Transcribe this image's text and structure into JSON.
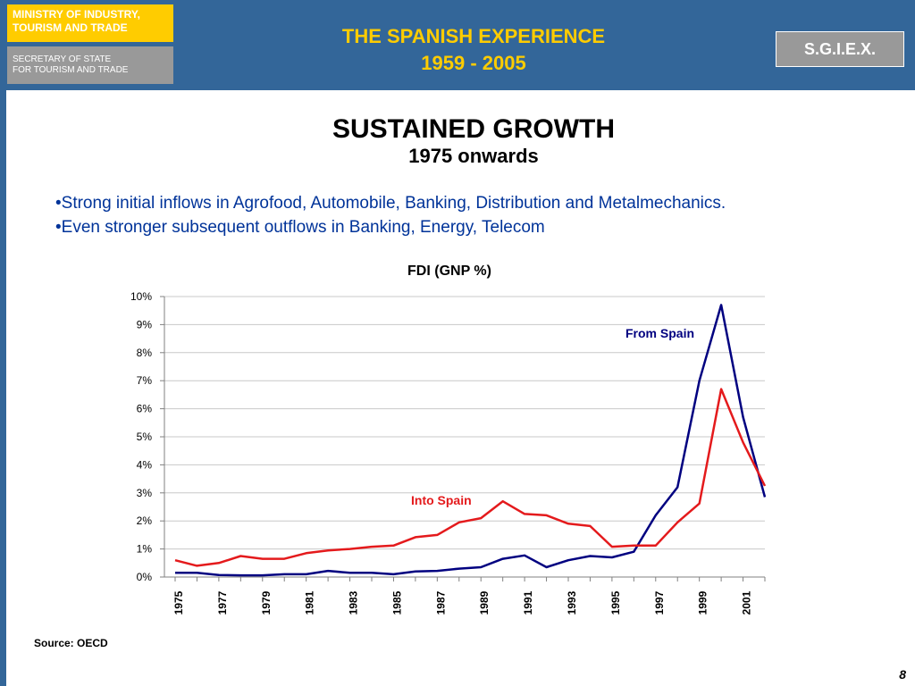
{
  "header": {
    "ministry_line1": "MINISTRY OF INDUSTRY,",
    "ministry_line2": "TOURISM AND TRADE",
    "secretary_line1": "SECRETARY OF STATE",
    "secretary_line2": "FOR TOURISM AND TRADE",
    "title_line1": "THE SPANISH EXPERIENCE",
    "title_line2": "1959 - 2005",
    "badge": "S.G.I.E.X."
  },
  "slide": {
    "title": "SUSTAINED GROWTH",
    "subtitle": "1975 onwards",
    "bullets": [
      "•Strong initial inflows in Agrofood, Automobile, Banking, Distribution and Metalmechanics.",
      "•Even stronger subsequent outflows in Banking, Energy, Telecom"
    ],
    "source": "Source: OECD",
    "page_number": "8"
  },
  "colors": {
    "header_blue": "#336699",
    "ministry_yellow": "#ffcc00",
    "secretary_gray": "#999999",
    "bullet_text": "#003399",
    "series_from_spain": "#000080",
    "series_into_spain": "#e41a1c"
  },
  "chart_data": {
    "type": "line",
    "title": "FDI (GNP %)",
    "x": [
      1975,
      1976,
      1977,
      1978,
      1979,
      1980,
      1981,
      1982,
      1983,
      1984,
      1985,
      1986,
      1987,
      1988,
      1989,
      1990,
      1991,
      1992,
      1993,
      1994,
      1995,
      1996,
      1997,
      1998,
      1999,
      2000,
      2001,
      2002
    ],
    "x_tick_labels": [
      "1975",
      "1977",
      "1979",
      "1981",
      "1983",
      "1985",
      "1987",
      "1989",
      "1991",
      "1993",
      "1995",
      "1997",
      "1999",
      "2001"
    ],
    "y_tick_labels": [
      "0%",
      "1%",
      "2%",
      "3%",
      "4%",
      "5%",
      "6%",
      "7%",
      "8%",
      "9%",
      "10%"
    ],
    "ylim": [
      0,
      10
    ],
    "grid": true,
    "series": [
      {
        "name": "From Spain",
        "color": "#000080",
        "values": [
          0.15,
          0.15,
          0.07,
          0.06,
          0.06,
          0.1,
          0.1,
          0.22,
          0.15,
          0.15,
          0.1,
          0.2,
          0.22,
          0.3,
          0.35,
          0.65,
          0.77,
          0.35,
          0.6,
          0.75,
          0.7,
          0.9,
          2.2,
          3.2,
          7.0,
          9.7,
          5.7,
          2.85
        ]
      },
      {
        "name": "Into Spain",
        "color": "#e41a1c",
        "values": [
          0.6,
          0.4,
          0.5,
          0.75,
          0.65,
          0.65,
          0.85,
          0.95,
          1.0,
          1.08,
          1.12,
          1.42,
          1.5,
          1.95,
          2.1,
          2.7,
          2.25,
          2.2,
          1.9,
          1.82,
          1.08,
          1.12,
          1.12,
          1.95,
          2.62,
          6.7,
          4.8,
          3.25
        ]
      }
    ]
  }
}
